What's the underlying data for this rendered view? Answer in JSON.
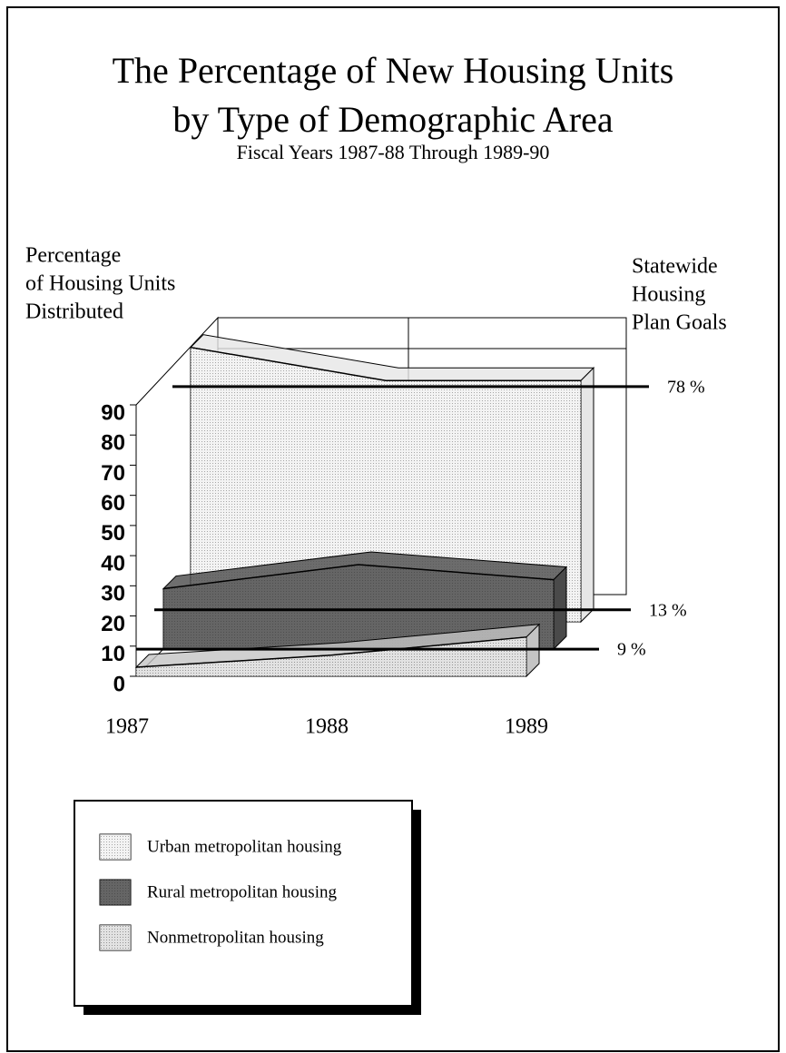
{
  "chart_data": {
    "type": "area3d",
    "title_lines": [
      "The Percentage of New Housing Units",
      "by Type of Demographic Area"
    ],
    "subtitle": "Fiscal Years 1987-88 Through 1989-90",
    "y_label_lines": [
      "Percentage",
      "of Housing Units",
      "Distributed"
    ],
    "goal_label_lines": [
      "Statewide",
      "Housing",
      "Plan Goals"
    ],
    "categories": [
      "1987",
      "1988",
      "1989"
    ],
    "ylim": [
      0,
      90
    ],
    "yticks": [
      0,
      10,
      20,
      30,
      40,
      50,
      60,
      70,
      80,
      90
    ],
    "series": [
      {
        "name": "Urban metropolitan housing",
        "color": "#e6e6e6",
        "values": [
          91,
          80,
          80
        ]
      },
      {
        "name": "Rural metropolitan housing",
        "color": "#4a4a4a",
        "values": [
          20,
          28,
          23
        ]
      },
      {
        "name": "Nonmetropolitan housing",
        "color": "#c4c4c4",
        "values": [
          3,
          7,
          13
        ]
      }
    ],
    "goals": [
      {
        "value": 78,
        "label": "78 %"
      },
      {
        "value": 13,
        "label": "13 %"
      },
      {
        "value": 9,
        "label": "9 %"
      }
    ]
  }
}
